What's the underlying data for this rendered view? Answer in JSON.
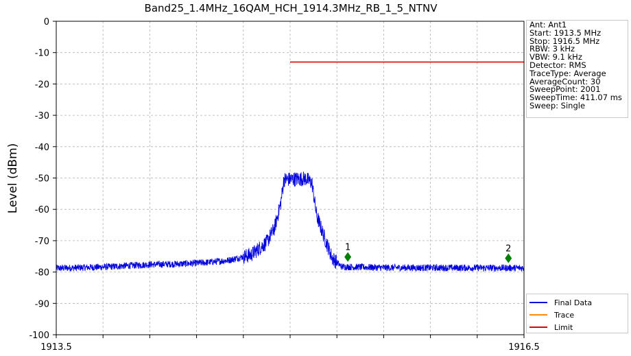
{
  "chart_data": {
    "type": "line",
    "title": "Band25_1.4MHz_16QAM_HCH_1914.3MHz_RB_1_5_NTNV",
    "xlabel": "",
    "ylabel": "Level (dBm)",
    "xlim": [
      1913.5,
      1916.5
    ],
    "ylim": [
      -100,
      0
    ],
    "x_tick_labels": [
      "1913.5",
      "1916.5"
    ],
    "y_ticks": [
      0,
      -10,
      -20,
      -30,
      -40,
      -50,
      -60,
      -70,
      -80,
      -90,
      -100
    ],
    "x_grid_divisions": 10,
    "grid": true,
    "legend_position": "bottom-right",
    "series": [
      {
        "name": "Final Data",
        "color": "#0000dd",
        "sweep_points": 2001,
        "shape_points": [
          [
            1913.5,
            -78.8
          ],
          [
            1913.8,
            -78.4
          ],
          [
            1914.1,
            -77.6
          ],
          [
            1914.3,
            -77.4
          ],
          [
            1914.45,
            -77.0
          ],
          [
            1914.6,
            -76.3
          ],
          [
            1914.75,
            -74.5
          ],
          [
            1914.85,
            -70.5
          ],
          [
            1914.9,
            -66.0
          ],
          [
            1914.94,
            -58.0
          ],
          [
            1914.96,
            -50.5
          ],
          [
            1915.1,
            -50.2
          ],
          [
            1915.14,
            -51.5
          ],
          [
            1915.17,
            -62.0
          ],
          [
            1915.22,
            -69.0
          ],
          [
            1915.27,
            -75.5
          ],
          [
            1915.33,
            -78.3
          ],
          [
            1915.6,
            -78.6
          ],
          [
            1916.5,
            -78.7
          ]
        ],
        "noise_amplitude": 1.1
      },
      {
        "name": "Trace",
        "color": "#ff8c00",
        "values": []
      },
      {
        "name": "Limit",
        "color": "#dd0000",
        "x": [
          1915.0,
          1916.5
        ],
        "y": [
          -13,
          -13
        ]
      }
    ],
    "markers": [
      {
        "label": "1",
        "x": 1915.37,
        "y": -75.2,
        "color": "#008000"
      },
      {
        "label": "2",
        "x": 1916.4,
        "y": -75.6,
        "color": "#008000"
      }
    ]
  },
  "info_box": {
    "lines": [
      "Ant: Ant1",
      "Start: 1913.5 MHz",
      "Stop: 1916.5 MHz",
      "RBW: 3 kHz",
      "VBW: 9.1 kHz",
      "Detector: RMS",
      "TraceType: Average",
      "AverageCount: 30",
      "SweepPoint: 2001",
      "SweepTime: 411.07 ms",
      "Sweep: Single"
    ]
  },
  "legend": {
    "items": [
      {
        "label": "Final Data",
        "color": "#0000dd"
      },
      {
        "label": "Trace",
        "color": "#ff8c00"
      },
      {
        "label": "Limit",
        "color": "#dd0000"
      }
    ]
  }
}
